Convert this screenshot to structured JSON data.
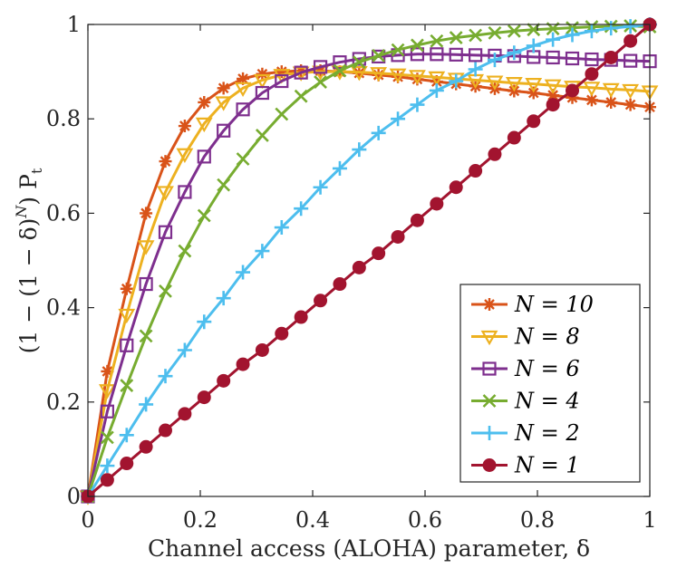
{
  "chart_data": {
    "type": "line",
    "title": "",
    "xlabel": "Channel access (ALOHA) parameter, δ",
    "ylabel": "(1 − (1 − δ)^N) P_t",
    "ylabel_parts": {
      "main": "(1 − (1 − δ)",
      "sup": "N",
      "close": ") P",
      "sub": "t"
    },
    "xlim": [
      0,
      1
    ],
    "ylim": [
      0,
      1
    ],
    "xticks": [
      0,
      0.2,
      0.4,
      0.6,
      0.8,
      1
    ],
    "yticks": [
      0,
      0.2,
      0.4,
      0.6,
      0.8,
      1
    ],
    "xtick_labels": [
      "0",
      "0.2",
      "0.4",
      "0.6",
      "0.8",
      "1"
    ],
    "ytick_labels": [
      "0",
      "0.2",
      "0.4",
      "0.6",
      "0.8",
      "1"
    ],
    "grid": false,
    "legend_position": "bottom-right",
    "x": [
      0,
      0.0345,
      0.069,
      0.1034,
      0.1379,
      0.1724,
      0.2069,
      0.2414,
      0.2759,
      0.3103,
      0.3448,
      0.3793,
      0.4138,
      0.4483,
      0.4828,
      0.5172,
      0.5517,
      0.5862,
      0.6207,
      0.6552,
      0.6897,
      0.7241,
      0.7586,
      0.7931,
      0.8276,
      0.8621,
      0.8966,
      0.931,
      0.9655,
      1
    ],
    "series": [
      {
        "name": "N = 10",
        "n": "10",
        "color": "#D95319",
        "marker": "asterisk",
        "values": [
          0,
          0.265,
          0.44,
          0.6,
          0.71,
          0.785,
          0.835,
          0.865,
          0.885,
          0.895,
          0.9,
          0.902,
          0.902,
          0.9,
          0.897,
          0.893,
          0.889,
          0.884,
          0.879,
          0.874,
          0.869,
          0.864,
          0.859,
          0.855,
          0.85,
          0.845,
          0.84,
          0.835,
          0.83,
          0.825
        ]
      },
      {
        "name": "N = 8",
        "n": "8",
        "color": "#EDB120",
        "marker": "triangle-down",
        "values": [
          0,
          0.225,
          0.385,
          0.53,
          0.645,
          0.725,
          0.79,
          0.835,
          0.865,
          0.882,
          0.893,
          0.898,
          0.9,
          0.9,
          0.899,
          0.897,
          0.894,
          0.891,
          0.888,
          0.885,
          0.882,
          0.879,
          0.876,
          0.874,
          0.871,
          0.868,
          0.866,
          0.863,
          0.861,
          0.858
        ]
      },
      {
        "name": "N = 6",
        "n": "6",
        "color": "#7E2F8E",
        "marker": "square",
        "values": [
          0,
          0.18,
          0.32,
          0.45,
          0.56,
          0.645,
          0.72,
          0.775,
          0.82,
          0.855,
          0.88,
          0.898,
          0.91,
          0.92,
          0.927,
          0.932,
          0.935,
          0.937,
          0.937,
          0.936,
          0.935,
          0.934,
          0.933,
          0.931,
          0.93,
          0.928,
          0.926,
          0.925,
          0.923,
          0.922
        ]
      },
      {
        "name": "N = 4",
        "n": "4",
        "color": "#77AC30",
        "marker": "x",
        "values": [
          0,
          0.125,
          0.235,
          0.34,
          0.435,
          0.52,
          0.595,
          0.66,
          0.715,
          0.765,
          0.81,
          0.848,
          0.878,
          0.902,
          0.92,
          0.934,
          0.946,
          0.956,
          0.965,
          0.972,
          0.977,
          0.982,
          0.986,
          0.989,
          0.991,
          0.993,
          0.995,
          0.996,
          0.997,
          0.995
        ]
      },
      {
        "name": "N = 2",
        "n": "2",
        "color": "#4DBEEE",
        "marker": "plus",
        "values": [
          0,
          0.065,
          0.13,
          0.195,
          0.255,
          0.31,
          0.37,
          0.42,
          0.475,
          0.52,
          0.57,
          0.61,
          0.655,
          0.695,
          0.735,
          0.77,
          0.8,
          0.83,
          0.86,
          0.88,
          0.905,
          0.925,
          0.94,
          0.955,
          0.968,
          0.978,
          0.986,
          0.992,
          0.996,
          1.0
        ]
      },
      {
        "name": "N = 1",
        "n": "1",
        "color": "#A2142F",
        "marker": "circle",
        "values": [
          0,
          0.035,
          0.07,
          0.105,
          0.14,
          0.175,
          0.21,
          0.245,
          0.28,
          0.31,
          0.345,
          0.38,
          0.415,
          0.45,
          0.485,
          0.515,
          0.55,
          0.585,
          0.62,
          0.655,
          0.69,
          0.725,
          0.76,
          0.795,
          0.83,
          0.86,
          0.895,
          0.93,
          0.965,
          1.0
        ]
      }
    ]
  }
}
